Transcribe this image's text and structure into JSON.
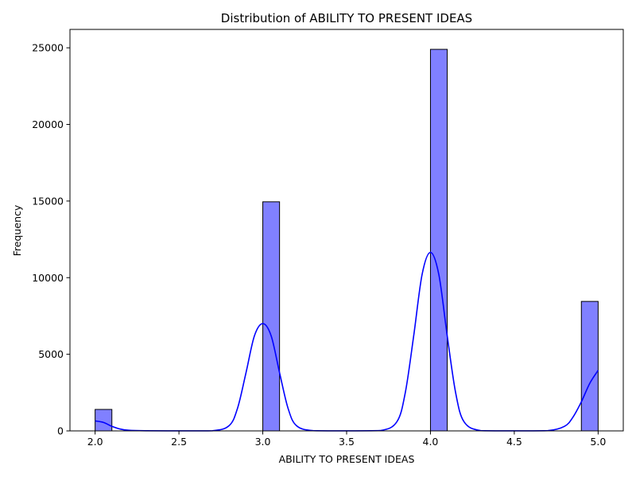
{
  "chart_data": {
    "type": "bar",
    "title": "Distribution of ABILITY TO PRESENT IDEAS",
    "xlabel": "ABILITY TO PRESENT IDEAS",
    "ylabel": "Frequency",
    "xlim": [
      1.85,
      5.15
    ],
    "ylim": [
      0,
      26200
    ],
    "x_ticks": [
      2.0,
      2.5,
      3.0,
      3.5,
      4.0,
      4.5,
      5.0
    ],
    "x_tick_labels": [
      "2.0",
      "2.5",
      "3.0",
      "3.5",
      "4.0",
      "4.5",
      "5.0"
    ],
    "y_ticks": [
      0,
      5000,
      10000,
      15000,
      20000,
      25000
    ],
    "y_tick_labels": [
      "0",
      "5000",
      "10000",
      "15000",
      "20000",
      "25000"
    ],
    "grid": false,
    "legend": "none",
    "bins": [
      {
        "x0": 2.0,
        "x1": 2.1,
        "count": 1400
      },
      {
        "x0": 3.0,
        "x1": 3.1,
        "count": 14950
      },
      {
        "x0": 4.0,
        "x1": 4.1,
        "count": 24900
      },
      {
        "x0": 4.9,
        "x1": 5.0,
        "count": 8450
      }
    ],
    "kde": {
      "x": [
        2.0,
        2.05,
        2.1,
        2.15,
        2.2,
        2.3,
        2.5,
        2.7,
        2.8,
        2.85,
        2.9,
        2.95,
        3.0,
        3.05,
        3.1,
        3.15,
        3.2,
        3.3,
        3.5,
        3.7,
        3.8,
        3.85,
        3.9,
        3.95,
        4.0,
        4.05,
        4.1,
        4.15,
        4.2,
        4.3,
        4.5,
        4.7,
        4.8,
        4.85,
        4.9,
        4.95,
        5.0
      ],
      "y": [
        650,
        550,
        300,
        120,
        40,
        10,
        5,
        10,
        350,
        1500,
        3800,
        6200,
        7000,
        6200,
        3800,
        1500,
        350,
        15,
        5,
        20,
        600,
        2500,
        6200,
        10200,
        11650,
        10200,
        6200,
        2500,
        600,
        15,
        5,
        15,
        300,
        900,
        1900,
        3100,
        3950
      ]
    },
    "colors": {
      "bar_fill": "#8080ff",
      "bar_edge": "#000000",
      "kde_line": "#0000ff"
    }
  }
}
